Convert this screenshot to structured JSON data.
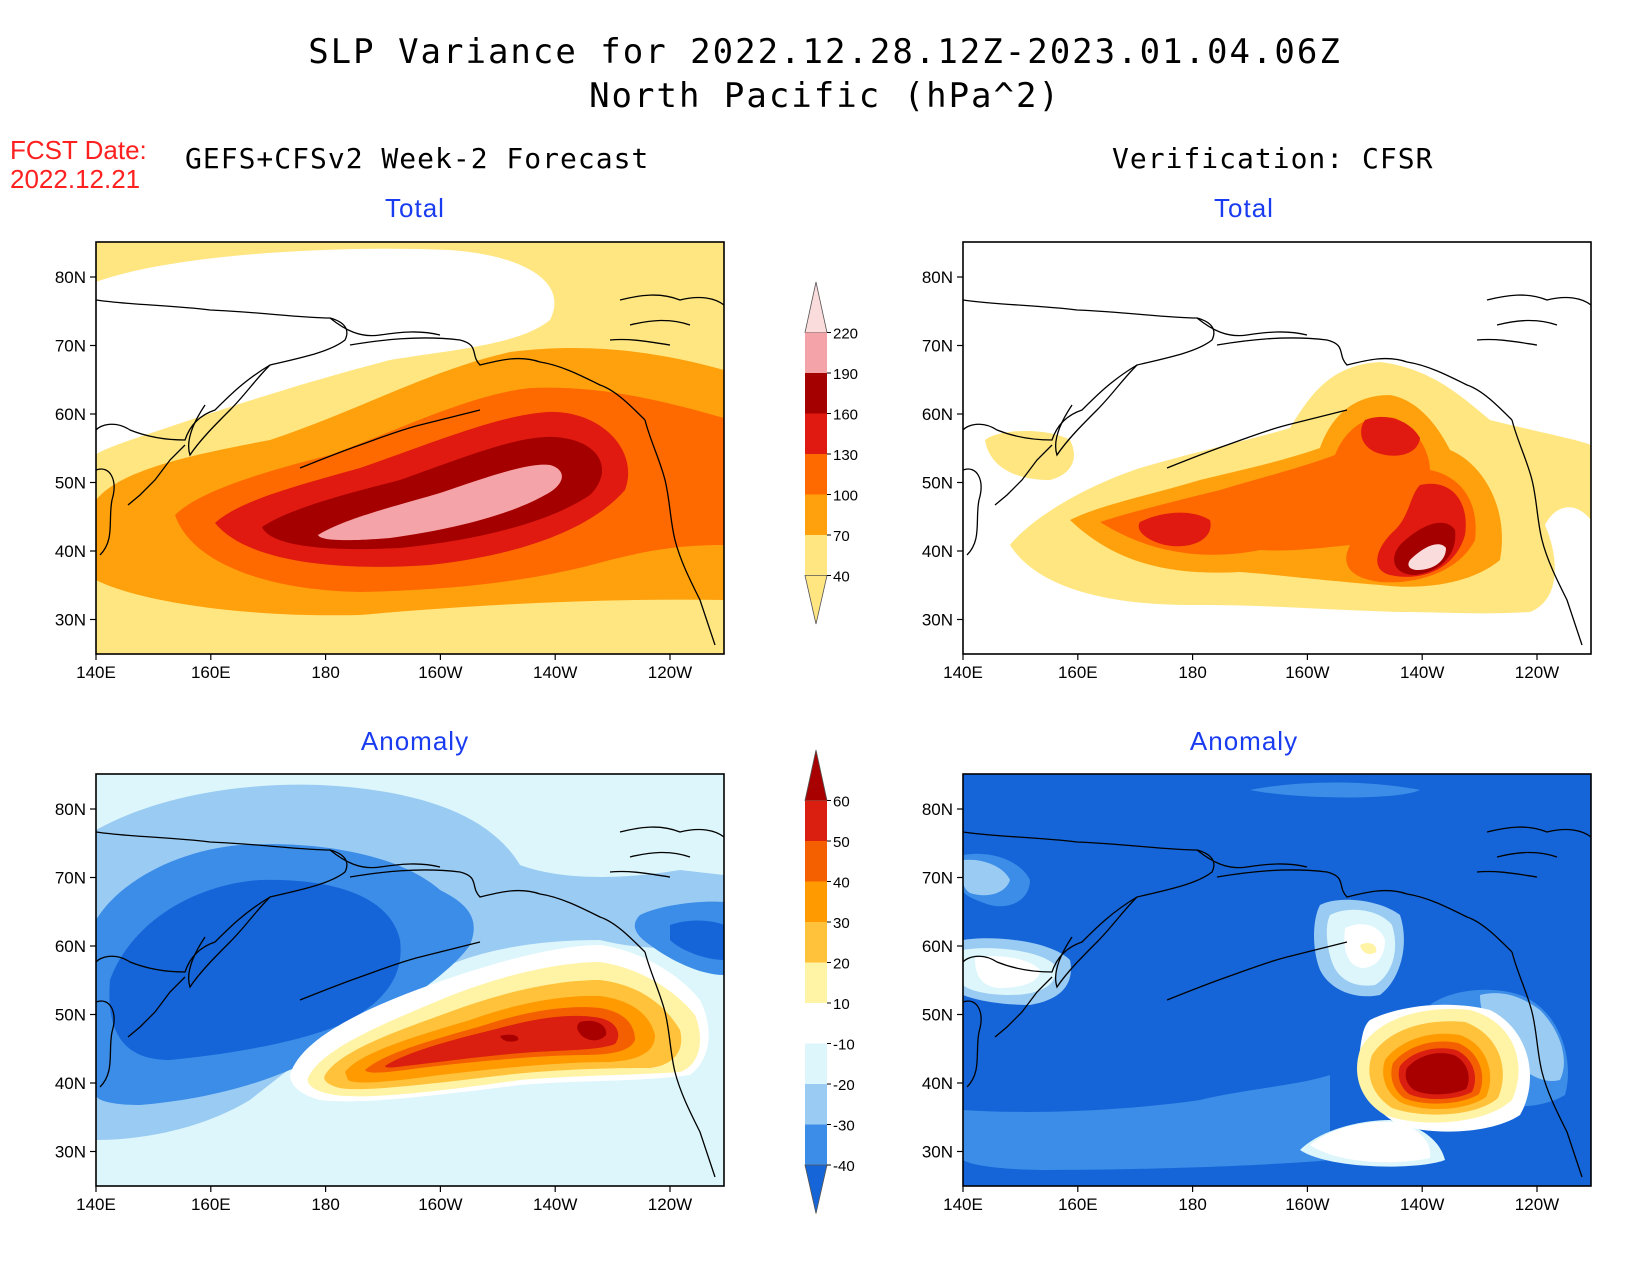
{
  "header": {
    "title_line1": "SLP Variance for 2022.12.28.12Z-2023.01.04.06Z",
    "title_line2": "North Pacific (hPa^2)",
    "fcst_label": "FCST Date:",
    "fcst_date": "2022.12.21",
    "left_subtitle": "GEFS+CFSv2 Week-2 Forecast",
    "right_subtitle": "Verification: CFSR"
  },
  "panels": {
    "fc_total_title": "Total",
    "ver_total_title": "Total",
    "fc_anom_title": "Anomaly",
    "ver_anom_title": "Anomaly"
  },
  "axes": {
    "lat_labels": [
      "80N",
      "70N",
      "60N",
      "50N",
      "40N",
      "30N"
    ],
    "lon_labels": [
      "140E",
      "160E",
      "180",
      "160W",
      "140W",
      "120W"
    ]
  },
  "colorbar_total": {
    "labels": [
      "40",
      "70",
      "100",
      "130",
      "160",
      "190",
      "220"
    ],
    "colors": [
      "#ffe680",
      "#ffa10c",
      "#ff6a00",
      "#e01a10",
      "#a50000",
      "#f4a3a8",
      "#fbdcdc"
    ]
  },
  "colorbar_anomaly": {
    "labels": [
      "-40",
      "-30",
      "-20",
      "-10",
      "10",
      "20",
      "30",
      "40",
      "50",
      "60"
    ],
    "colors": [
      "#1565d8",
      "#3b8de8",
      "#9acbf3",
      "#dcf6fb",
      "#ffffff",
      "#fff3a6",
      "#ffc23a",
      "#ff9a00",
      "#f45f00",
      "#da1e10",
      "#a80000"
    ]
  }
}
